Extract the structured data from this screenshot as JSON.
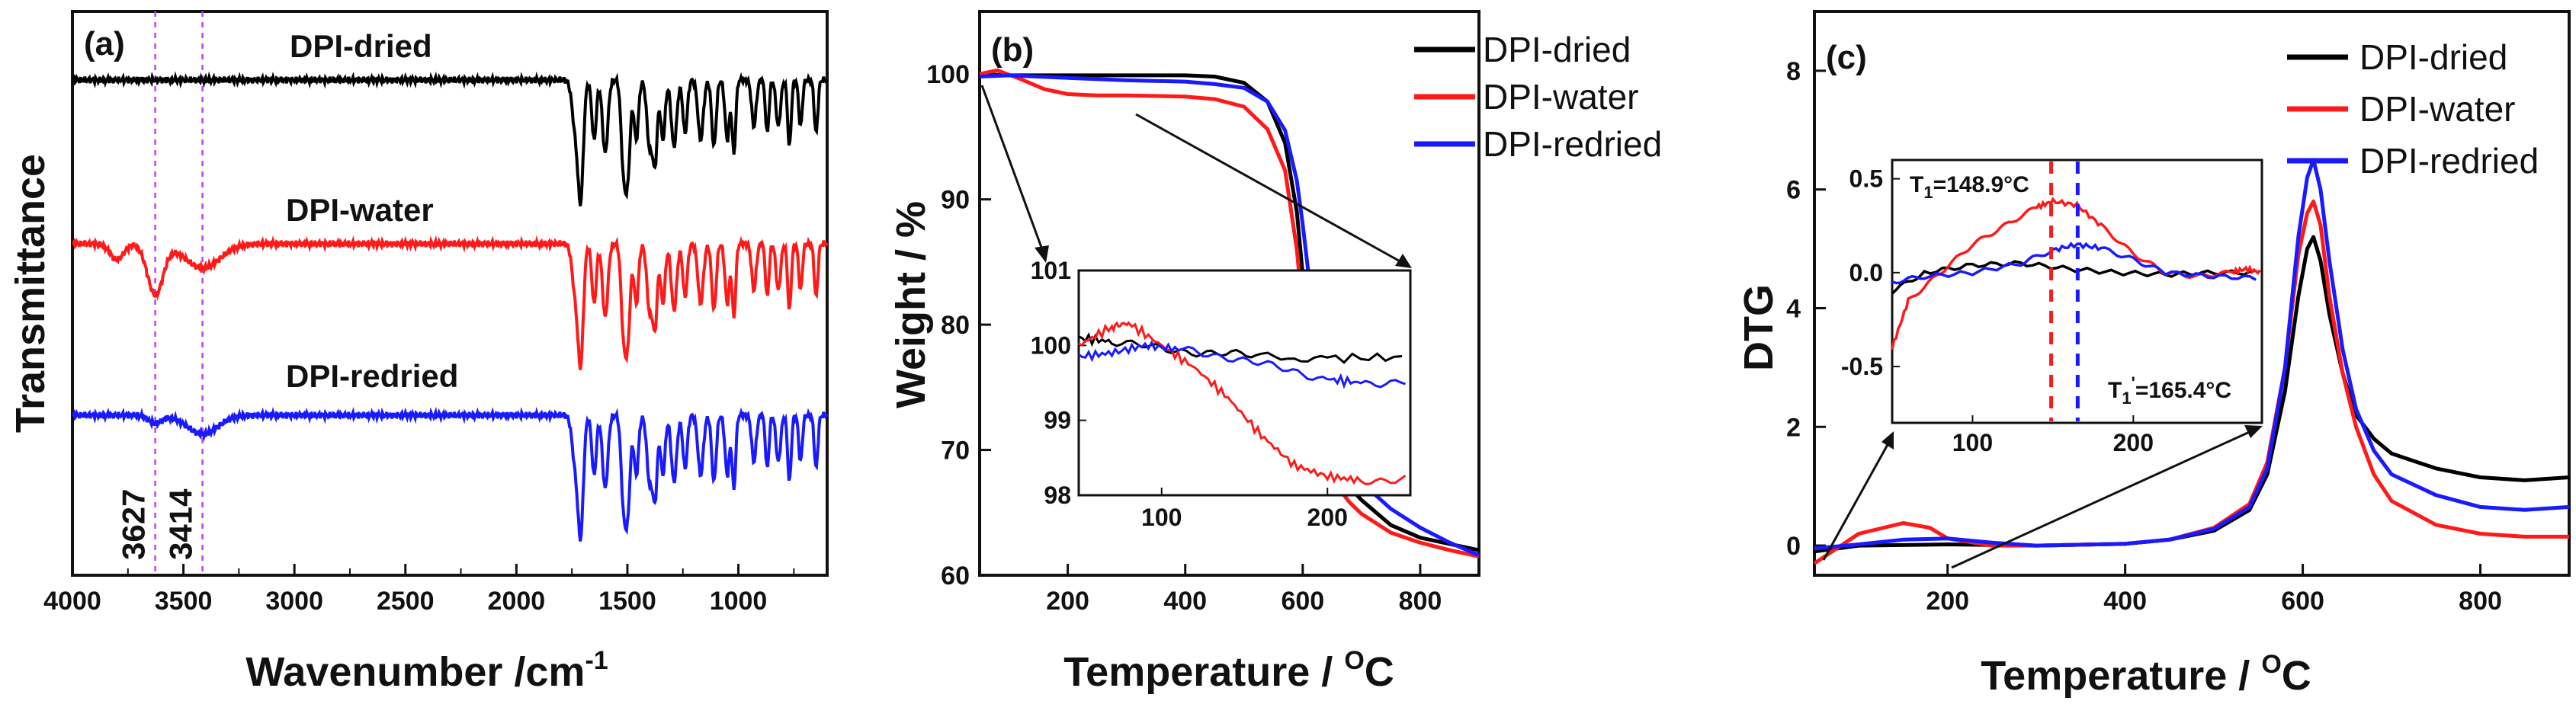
{
  "colors": {
    "dried": "#000000",
    "water": "#ff1a1a",
    "redried": "#1a1aff",
    "marker": "#c040ff"
  },
  "chart_data": [
    {
      "panel": "(a)",
      "type": "line",
      "xlabel": "Wavenumber /cm",
      "xlabel_sup": "-1",
      "ylabel": "Transmittance",
      "xlim": [
        4000,
        600
      ],
      "xticks": [
        "4000",
        "3500",
        "3000",
        "2500",
        "2000",
        "1500",
        "1000"
      ],
      "series": [
        {
          "name": "DPI-dried",
          "color": "#000000",
          "baseline_offset": 2.0
        },
        {
          "name": "DPI-water",
          "color": "#ff1a1a",
          "baseline_offset": 1.0
        },
        {
          "name": "DPI-redried",
          "color": "#1a1aff",
          "baseline_offset": 0.0
        }
      ],
      "markers": [
        {
          "x": 3627,
          "label": "3627"
        },
        {
          "x": 3414,
          "label": "3414"
        }
      ]
    },
    {
      "panel": "(b)",
      "type": "line",
      "xlabel": "Temperature / ",
      "xlabel_sup": "O",
      "xlabel_unit": "C",
      "ylabel": "Weight / %",
      "xlim": [
        50,
        900
      ],
      "ylim": [
        60,
        105
      ],
      "xticks": [
        "200",
        "400",
        "600",
        "800"
      ],
      "yticks": [
        "60",
        "70",
        "80",
        "90",
        "100"
      ],
      "legend": [
        "DPI-dried",
        "DPI-water",
        "DPI-redried"
      ],
      "series": [
        {
          "name": "DPI-dried",
          "color": "#000000",
          "x": [
            50,
            100,
            200,
            300,
            400,
            450,
            500,
            540,
            570,
            590,
            600,
            610,
            620,
            640,
            660,
            680,
            700,
            750,
            800,
            850,
            900
          ],
          "y": [
            100,
            99.9,
            99.9,
            99.9,
            99.9,
            99.8,
            99.3,
            97.8,
            94.5,
            89,
            84,
            78,
            74,
            70,
            68.2,
            67,
            66,
            64,
            63,
            62.5,
            62
          ]
        },
        {
          "name": "DPI-water",
          "color": "#ff1a1a",
          "x": [
            50,
            80,
            120,
            160,
            200,
            250,
            300,
            400,
            450,
            500,
            540,
            570,
            590,
            600,
            610,
            620,
            640,
            660,
            680,
            700,
            750,
            800,
            850,
            900
          ],
          "y": [
            100,
            100.3,
            99.6,
            98.8,
            98.4,
            98.3,
            98.3,
            98.2,
            98.0,
            97.4,
            95.6,
            92.3,
            86,
            81,
            76,
            72.5,
            69,
            67,
            65.8,
            64.9,
            63.4,
            62.6,
            62,
            61.5
          ]
        },
        {
          "name": "DPI-redried",
          "color": "#1a1aff",
          "x": [
            50,
            100,
            200,
            300,
            400,
            450,
            500,
            540,
            570,
            590,
            600,
            610,
            620,
            640,
            660,
            680,
            700,
            750,
            800,
            850,
            900
          ],
          "y": [
            99.8,
            99.9,
            99.7,
            99.5,
            99.4,
            99.2,
            98.9,
            97.8,
            95.5,
            91.5,
            88,
            84,
            80,
            74,
            70.5,
            68.6,
            67.4,
            65.3,
            63.8,
            62.6,
            61.6
          ]
        }
      ],
      "inset": {
        "xlim": [
          50,
          250
        ],
        "ylim": [
          98,
          101
        ],
        "xticks": [
          "100",
          "200"
        ],
        "yticks": [
          "98",
          "99",
          "100",
          "101"
        ],
        "series": [
          {
            "name": "DPI-dried",
            "x": [
              50,
              70,
              100,
              130,
              160,
              200,
              250
            ],
            "y": [
              100.1,
              100.05,
              99.95,
              99.9,
              99.85,
              99.83,
              99.84
            ]
          },
          {
            "name": "DPI-water",
            "x": [
              50,
              70,
              80,
              100,
              120,
              140,
              160,
              180,
              200,
              220,
              250
            ],
            "y": [
              100.0,
              100.25,
              100.3,
              100.0,
              99.7,
              99.3,
              98.8,
              98.4,
              98.25,
              98.2,
              98.22
            ]
          },
          {
            "name": "DPI-redried",
            "x": [
              50,
              70,
              90,
              110,
              140,
              170,
              200,
              220,
              250
            ],
            "y": [
              99.85,
              99.9,
              100.0,
              99.95,
              99.85,
              99.7,
              99.55,
              99.5,
              99.52
            ]
          }
        ]
      }
    },
    {
      "panel": "(c)",
      "type": "line",
      "xlabel": "Temperature / ",
      "xlabel_sup": "O",
      "xlabel_unit": "C",
      "ylabel": "DTG",
      "xlim": [
        50,
        900
      ],
      "ylim": [
        -0.5,
        9
      ],
      "xticks": [
        "200",
        "400",
        "600",
        "800"
      ],
      "yticks": [
        "0",
        "2",
        "4",
        "6",
        "8"
      ],
      "legend": [
        "DPI-dried",
        "DPI-water",
        "DPI-redried"
      ],
      "series": [
        {
          "name": "DPI-dried",
          "color": "#000000",
          "x": [
            50,
            100,
            200,
            300,
            400,
            450,
            500,
            540,
            560,
            580,
            595,
            605,
            612,
            620,
            630,
            645,
            660,
            680,
            700,
            750,
            800,
            850,
            900
          ],
          "y": [
            -0.1,
            0,
            0.02,
            0,
            0.03,
            0.1,
            0.25,
            0.6,
            1.2,
            2.6,
            4.2,
            5.0,
            5.2,
            4.8,
            3.9,
            2.9,
            2.2,
            1.8,
            1.55,
            1.3,
            1.15,
            1.1,
            1.15
          ]
        },
        {
          "name": "DPI-water",
          "color": "#ff1a1a",
          "x": [
            50,
            100,
            150,
            180,
            200,
            250,
            300,
            400,
            450,
            500,
            540,
            560,
            580,
            595,
            605,
            612,
            620,
            630,
            645,
            660,
            680,
            700,
            750,
            800,
            850,
            900
          ],
          "y": [
            -0.3,
            0.2,
            0.38,
            0.3,
            0.12,
            0,
            0,
            0.03,
            0.1,
            0.3,
            0.7,
            1.4,
            3.0,
            4.9,
            5.6,
            5.8,
            5.4,
            4.2,
            2.9,
            2.0,
            1.2,
            0.75,
            0.35,
            0.2,
            0.15,
            0.15
          ]
        },
        {
          "name": "DPI-redried",
          "color": "#1a1aff",
          "x": [
            50,
            100,
            150,
            200,
            250,
            300,
            400,
            450,
            500,
            540,
            560,
            580,
            595,
            605,
            612,
            620,
            630,
            645,
            660,
            680,
            700,
            750,
            800,
            850,
            900
          ],
          "y": [
            -0.05,
            0.02,
            0.1,
            0.12,
            0.05,
            0,
            0.03,
            0.1,
            0.28,
            0.65,
            1.3,
            3.0,
            5.2,
            6.2,
            6.5,
            6.0,
            4.8,
            3.3,
            2.3,
            1.6,
            1.2,
            0.85,
            0.65,
            0.6,
            0.65
          ]
        }
      ],
      "inset": {
        "xlim": [
          50,
          280
        ],
        "ylim": [
          -0.8,
          0.6
        ],
        "xticks": [
          "100",
          "200"
        ],
        "yticks": [
          "-0.5",
          "0.0",
          "0.5"
        ],
        "series": [
          {
            "name": "DPI-dried",
            "x": [
              50,
              70,
              100,
              130,
              160,
              190,
              220,
              250,
              280
            ],
            "y": [
              -0.1,
              0.0,
              0.04,
              0.05,
              0.02,
              0.0,
              -0.01,
              0.0,
              0.0
            ]
          },
          {
            "name": "DPI-water",
            "x": [
              50,
              60,
              80,
              100,
              120,
              140,
              150,
              165,
              180,
              200,
              220,
              240,
              260,
              270,
              280
            ],
            "y": [
              -0.4,
              -0.15,
              0.0,
              0.15,
              0.25,
              0.35,
              0.38,
              0.36,
              0.25,
              0.1,
              0.0,
              -0.02,
              0.0,
              0.02,
              0.0
            ]
          },
          {
            "name": "DPI-redried",
            "x": [
              50,
              70,
              100,
              130,
              150,
              165,
              180,
              200,
              220,
              250,
              280
            ],
            "y": [
              -0.05,
              -0.02,
              0.0,
              0.05,
              0.12,
              0.15,
              0.13,
              0.07,
              0.0,
              -0.02,
              -0.03
            ]
          }
        ],
        "annotations": [
          {
            "text": "T",
            "sub": "1",
            "rest": "=148.9°C",
            "x": 148.9,
            "color": "#ff1a1a"
          },
          {
            "text": "T",
            "sub": "1",
            "sup": "'",
            "rest": "=165.4°C",
            "x": 165.4,
            "color": "#1a1aff"
          }
        ]
      }
    }
  ]
}
